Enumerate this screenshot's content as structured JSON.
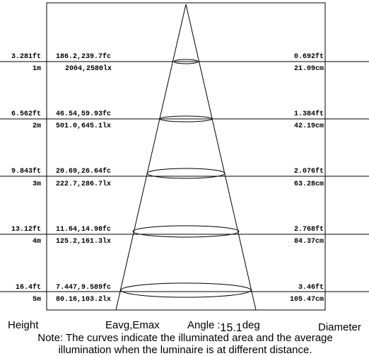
{
  "rows": [
    {
      "height_ft": "3.281ft",
      "height_m": "1m",
      "fc": "186.2,239.7fc",
      "lux": "2004,2580lx",
      "diam_ft": "0.692ft",
      "diam_cm": "21.09cm"
    },
    {
      "height_ft": "6.562ft",
      "height_m": "2m",
      "fc": "46.54,59.93fc",
      "lux": "501.0,645.1lx",
      "diam_ft": "1.384ft",
      "diam_cm": "42.19cm"
    },
    {
      "height_ft": "9.843ft",
      "height_m": "3m",
      "fc": "20.69,26.64fc",
      "lux": "222.7,286.7lx",
      "diam_ft": "2.076ft",
      "diam_cm": "63.28cm"
    },
    {
      "height_ft": "13.12ft",
      "height_m": "4m",
      "fc": "11.64,14.98fc",
      "lux": "125.2,161.3lx",
      "diam_ft": "2.768ft",
      "diam_cm": "84.37cm"
    },
    {
      "height_ft": "16.4ft",
      "height_m": "5m",
      "fc": "7.447,9.589fc",
      "lux": "80.16,103.2lx",
      "diam_ft": "3.46ft",
      "diam_cm": "105.47cm"
    }
  ],
  "footer": {
    "height": "Height",
    "eavg": "Eavg,Emax",
    "angle_label": "Angle",
    "angle_sep": ":",
    "angle_value": "15.1",
    "angle_unit": "deg",
    "diameter": "Diameter"
  },
  "note": {
    "line1": "Note: The curves indicate the illuminated area and the average",
    "line2": "illumination when the luminaire is at different distance."
  }
}
